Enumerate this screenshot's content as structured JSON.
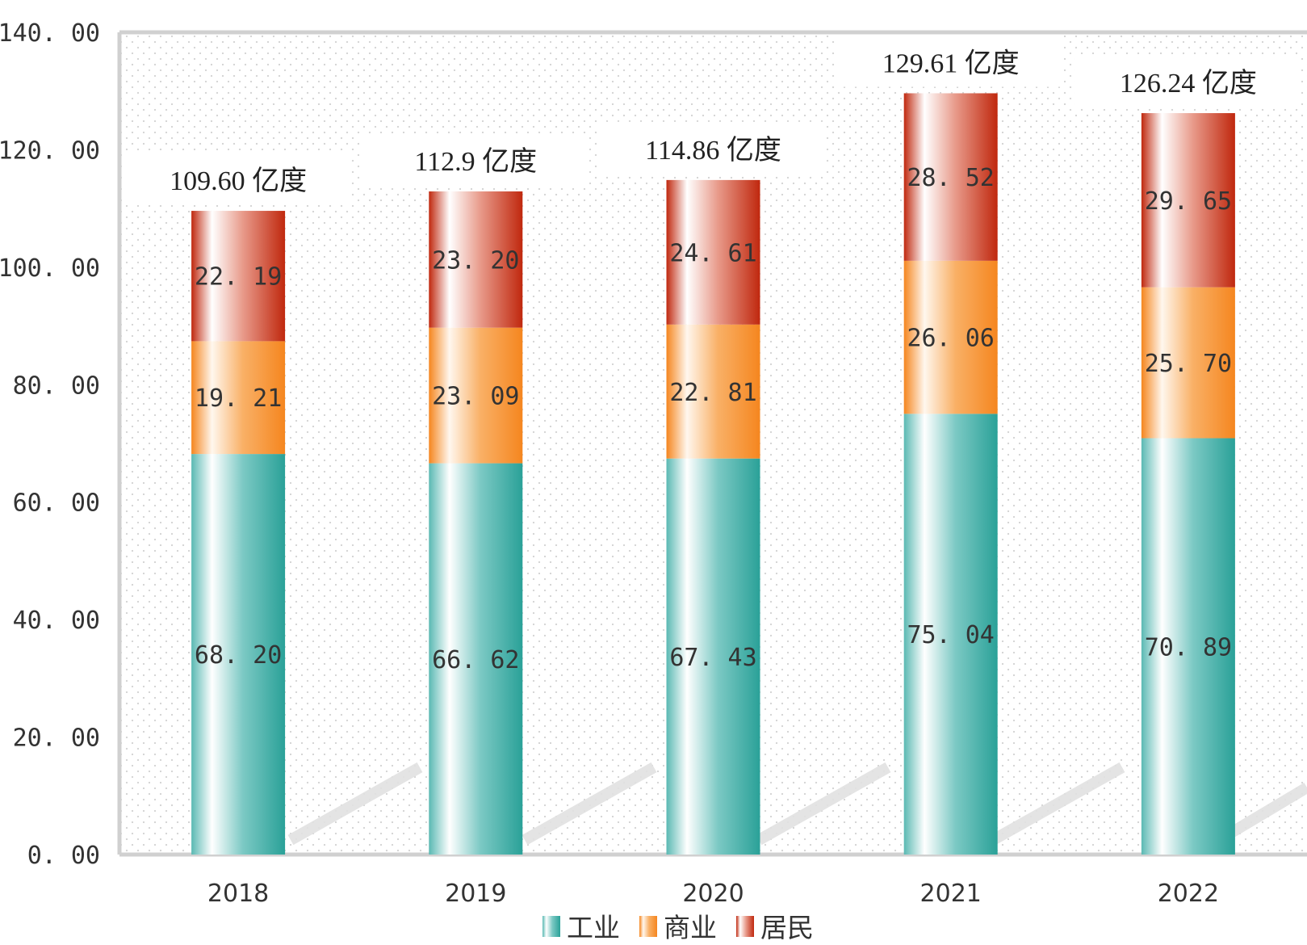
{
  "chart_data": {
    "type": "bar",
    "stacked": true,
    "categories": [
      "2018",
      "2019",
      "2020",
      "2021",
      "2022"
    ],
    "series": [
      {
        "name": "工业",
        "values": [
          68.2,
          66.62,
          67.43,
          75.04,
          70.89
        ],
        "labels": [
          "68. 20",
          "66. 62",
          "67. 43",
          "75. 04",
          "70. 89"
        ],
        "color": "#2aa198"
      },
      {
        "name": "商业",
        "values": [
          19.21,
          23.09,
          22.81,
          26.06,
          25.7
        ],
        "labels": [
          "19. 21",
          "23. 09",
          "22. 81",
          "26. 06",
          "25. 70"
        ],
        "color": "#f5861f"
      },
      {
        "name": "居民",
        "values": [
          22.19,
          23.2,
          24.61,
          28.52,
          29.65
        ],
        "labels": [
          "22. 19",
          "23. 20",
          "24. 61",
          "28. 52",
          "29. 65"
        ],
        "color": "#c0280e"
      }
    ],
    "totals": [
      "109.60 亿度",
      "112.9 亿度",
      "114.86 亿度",
      "129.61 亿度",
      "126.24 亿度"
    ],
    "yticks": [
      "0. 00",
      "20. 00",
      "40. 00",
      "60. 00",
      "80. 00",
      "100. 00",
      "120. 00",
      "140. 00"
    ],
    "ylim": [
      0,
      140
    ],
    "title": "",
    "xlabel": "",
    "ylabel": "",
    "legend_position": "bottom"
  }
}
